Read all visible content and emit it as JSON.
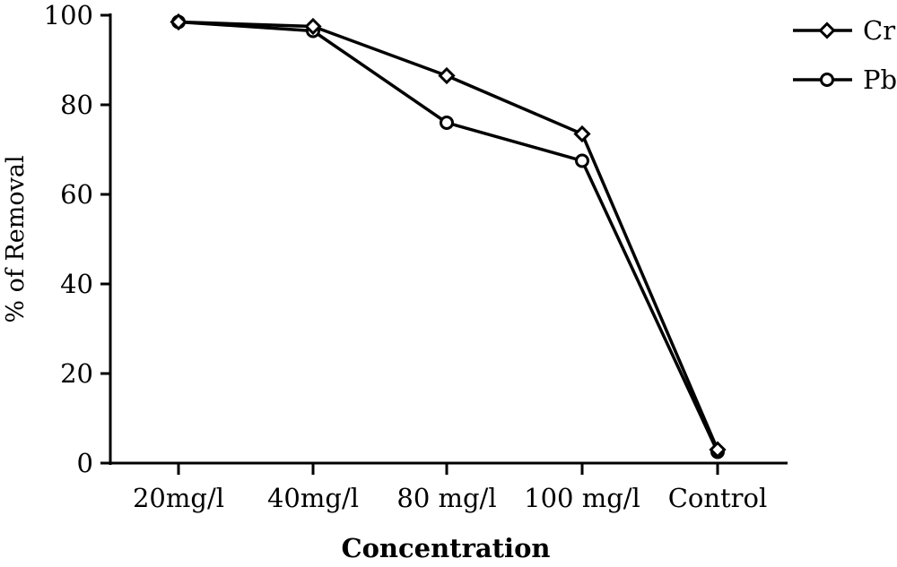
{
  "chart_data": {
    "type": "line",
    "categories": [
      "20mg/l",
      "40mg/l",
      "80 mg/l",
      "100 mg/l",
      "Control"
    ],
    "series": [
      {
        "name": "Cr",
        "values": [
          98.5,
          97.5,
          86.5,
          73.5,
          3
        ],
        "marker": "diamond",
        "color": "#000000"
      },
      {
        "name": "Pb",
        "values": [
          98.5,
          96.5,
          76,
          67.5,
          2.5
        ],
        "marker": "circle",
        "color": "#000000"
      }
    ],
    "xlabel": "Concentration",
    "ylabel": "% of Removal",
    "ylim": [
      0,
      100
    ],
    "yticks": [
      0,
      20,
      40,
      60,
      80,
      100
    ],
    "ytick_labels": [
      "0",
      "20",
      "40",
      "60",
      "80",
      "100"
    ],
    "grid": false,
    "legend_position": "top-right"
  }
}
